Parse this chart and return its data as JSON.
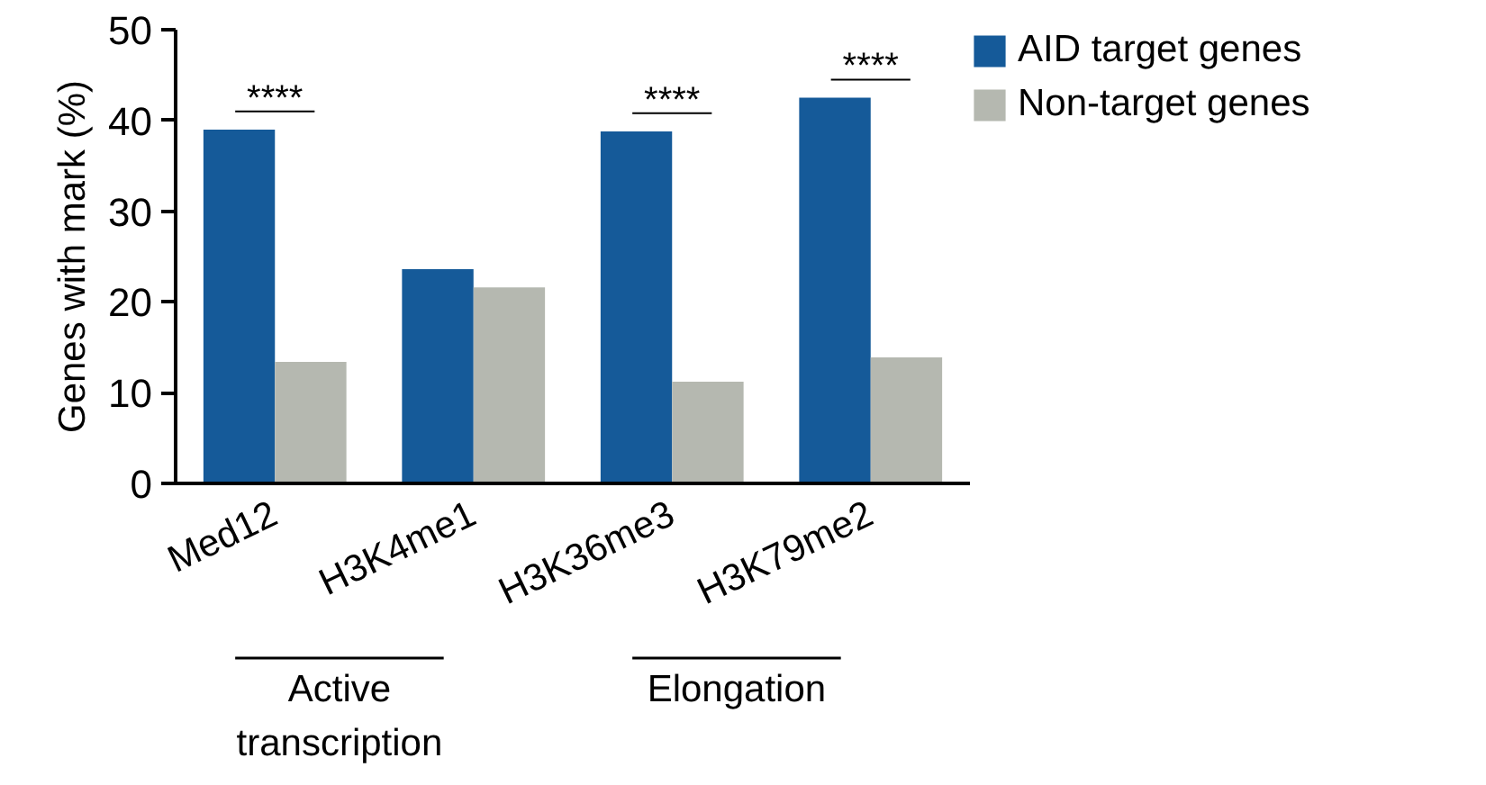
{
  "chart_data": {
    "type": "bar",
    "ylabel": "Genes with mark (%)",
    "categories": [
      "Med12",
      "H3K4me1",
      "H3K36me3",
      "H3K79me2"
    ],
    "series": [
      {
        "name": "AID target genes",
        "color": "#155a99",
        "values": [
          39.0,
          23.6,
          38.8,
          42.5
        ]
      },
      {
        "name": "Non-target genes",
        "color": "#b5b8b0",
        "values": [
          13.4,
          21.6,
          11.2,
          13.9
        ]
      }
    ],
    "ylim": [
      0,
      50
    ],
    "yticks": [
      0,
      10,
      20,
      30,
      40,
      50
    ],
    "grid": false,
    "legend": "right",
    "annotations": [
      "****",
      "****",
      "****",
      "Active transcription",
      "Elongation"
    ]
  }
}
